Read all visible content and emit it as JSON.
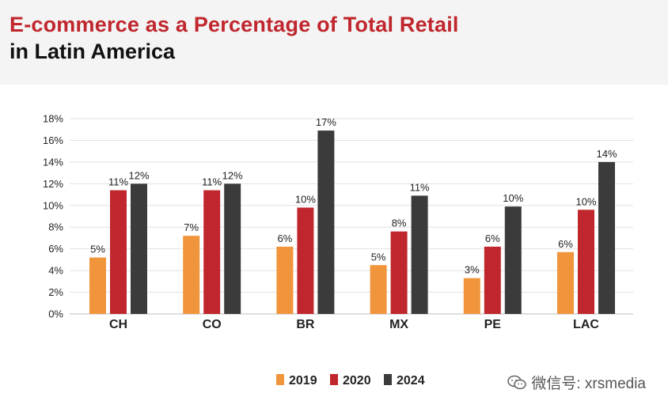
{
  "header": {
    "title_line1": "E-commerce as a Percentage of Total Retail",
    "title_line2": "in Latin America"
  },
  "watermark": {
    "text": "微信号: xrsmedia",
    "icon": "wechat-icon"
  },
  "colors": {
    "s2019": "#f0953b",
    "s2020": "#c0262d",
    "s2024": "#3b3b3b",
    "grid": "#e2e2e2"
  },
  "chart_data": {
    "type": "bar",
    "title": "E-commerce as a Percentage of Total Retail in Latin America",
    "categories": [
      "CH",
      "CO",
      "BR",
      "MX",
      "PE",
      "LAC"
    ],
    "series": [
      {
        "name": "2019",
        "values": [
          5.2,
          7.2,
          6.2,
          4.5,
          3.3,
          5.7
        ],
        "labels": [
          "5%",
          "7%",
          "6%",
          "5%",
          "3%",
          "6%"
        ]
      },
      {
        "name": "2020",
        "values": [
          11.4,
          11.4,
          9.8,
          7.6,
          6.2,
          9.6
        ],
        "labels": [
          "11%",
          "11%",
          "10%",
          "8%",
          "6%",
          "10%"
        ]
      },
      {
        "name": "2024",
        "values": [
          12.0,
          12.0,
          16.9,
          10.9,
          9.9,
          14.0
        ],
        "labels": [
          "12%",
          "12%",
          "17%",
          "11%",
          "10%",
          "14%"
        ]
      }
    ],
    "yticks": [
      "0%",
      "2%",
      "4%",
      "6%",
      "8%",
      "10%",
      "12%",
      "14%",
      "16%",
      "18%"
    ],
    "ylim": [
      0,
      18
    ],
    "grid": true,
    "legend_position": "bottom-center"
  }
}
